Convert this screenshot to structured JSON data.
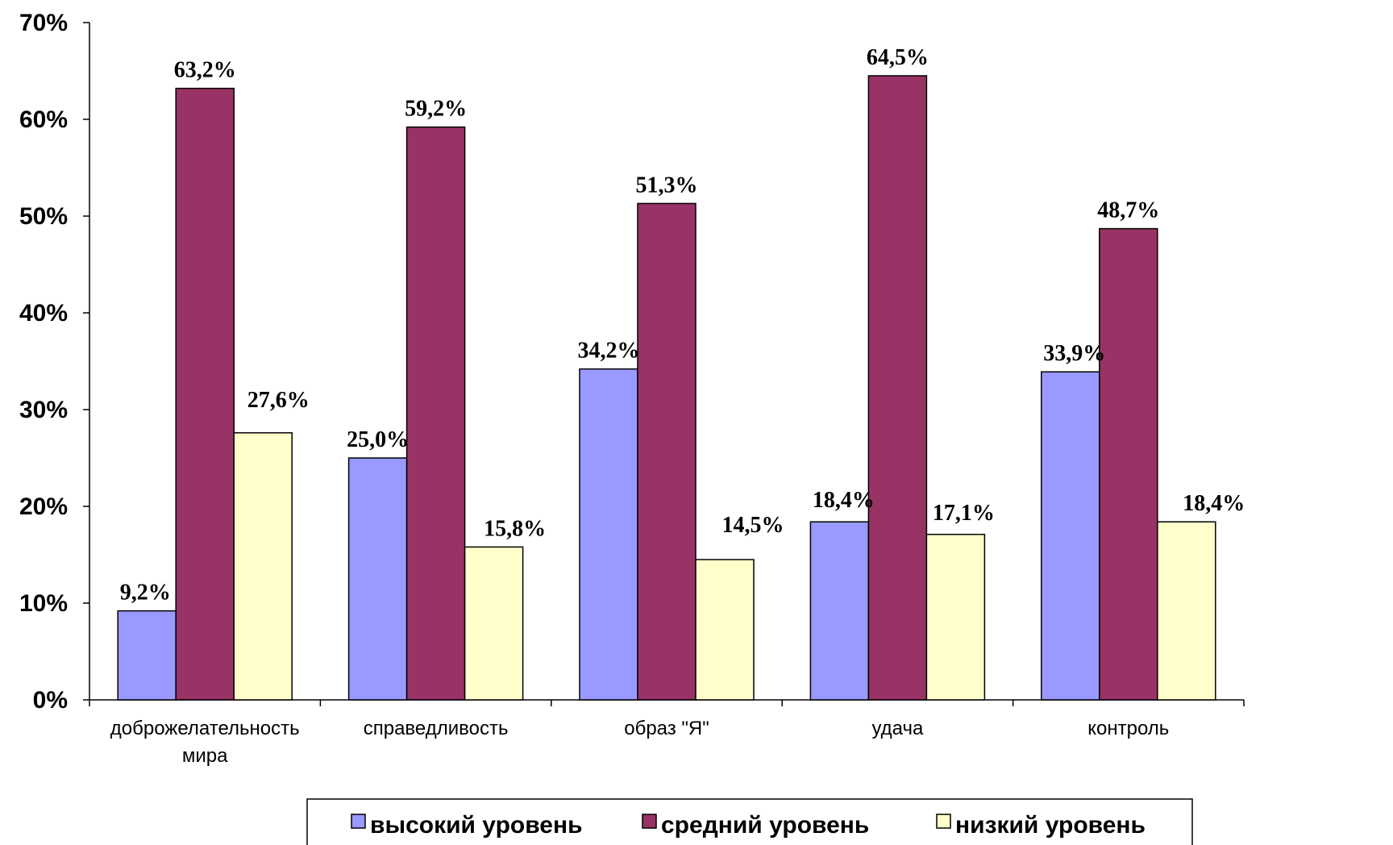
{
  "chart_data": {
    "type": "bar",
    "categories": [
      [
        "доброжелательность",
        "мира"
      ],
      [
        "справедливость"
      ],
      [
        "образ \"Я\""
      ],
      [
        "удача"
      ],
      [
        "контроль"
      ]
    ],
    "series": [
      {
        "name": "высокий уровень",
        "color": "#9999ff",
        "values": [
          9.2,
          25.0,
          34.2,
          18.4,
          33.9
        ],
        "labels": [
          "9,2%",
          "25,0%",
          "34,2%",
          "18,4%",
          "33,9%"
        ]
      },
      {
        "name": "средний уровень",
        "color": "#993366",
        "values": [
          63.2,
          59.2,
          51.3,
          64.5,
          48.7
        ],
        "labels": [
          "63,2%",
          "59,2%",
          "51,3%",
          "64,5%",
          "48,7%"
        ]
      },
      {
        "name": "низкий уровень",
        "color": "#ffffcc",
        "values": [
          27.6,
          15.8,
          14.5,
          17.1,
          18.4
        ],
        "labels": [
          "27,6%",
          "15,8%",
          "14,5%",
          "17,1%",
          "18,4%"
        ]
      }
    ],
    "ylim": [
      0,
      70
    ],
    "yticks": [
      0,
      10,
      20,
      30,
      40,
      50,
      60,
      70
    ],
    "ytick_labels": [
      "0%",
      "10%",
      "20%",
      "30%",
      "40%",
      "50%",
      "60%",
      "70%"
    ],
    "grid": false,
    "legend_position": "bottom"
  }
}
